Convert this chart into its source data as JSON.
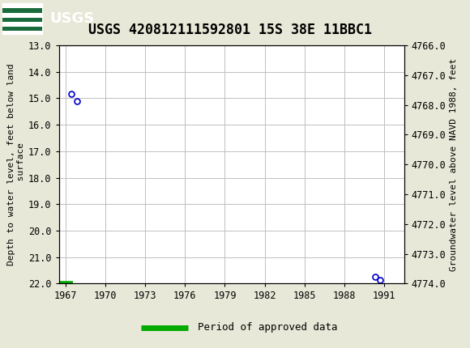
{
  "title": "USGS 420812111592801 15S 38E 11BBC1",
  "header_color": "#1a6b3c",
  "left_ylabel_line1": "Depth to water level, feet below land",
  "left_ylabel_line2": " surface",
  "right_ylabel": "Groundwater level above NAVD 1988, feet",
  "ylim_left": [
    13.0,
    22.0
  ],
  "ylim_right_top": 4774.0,
  "ylim_right_bottom": 4766.0,
  "xlim": [
    1966.5,
    1992.5
  ],
  "xticks": [
    1967,
    1970,
    1973,
    1976,
    1979,
    1982,
    1985,
    1988,
    1991
  ],
  "yticks_left": [
    13.0,
    14.0,
    15.0,
    16.0,
    17.0,
    18.0,
    19.0,
    20.0,
    21.0,
    22.0
  ],
  "yticks_right": [
    4774.0,
    4773.0,
    4772.0,
    4771.0,
    4770.0,
    4769.0,
    4768.0,
    4767.0,
    4766.0
  ],
  "data_points_x": [
    1967.45,
    1967.9,
    1990.3,
    1990.7
  ],
  "data_points_y": [
    14.85,
    15.1,
    21.75,
    21.85
  ],
  "point_color": "#0000cc",
  "point_size": 5,
  "approved_bar_x_start": 1966.6,
  "approved_bar_x_end": 1967.55,
  "approved_bar_y": 22.0,
  "approved_bar_color": "#00aa00",
  "approved_label": "Period of approved data",
  "bg_color": "#e8e8d8",
  "plot_bg_color": "#ffffff",
  "grid_color": "#c0c0c0",
  "title_fontsize": 12,
  "axis_label_fontsize": 8,
  "tick_fontsize": 8.5
}
